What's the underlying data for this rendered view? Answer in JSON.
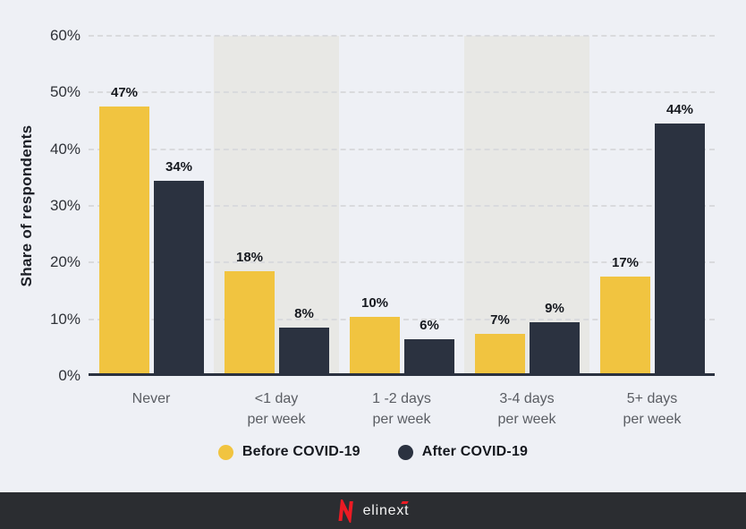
{
  "chart_data": {
    "type": "bar",
    "title": "",
    "xlabel": "",
    "ylabel": "Share of respondents",
    "categories": [
      "Never",
      "<1 day\nper week",
      "1 -2 days\nper week",
      "3-4 days\nper week",
      "5+ days\nper week"
    ],
    "series": [
      {
        "name": "Before COVID-19",
        "color": "#F1C440",
        "values": [
          47,
          18,
          10,
          7,
          17
        ]
      },
      {
        "name": "After COVID-19",
        "color": "#2B3240",
        "values": [
          34,
          8,
          6,
          9,
          44
        ]
      }
    ],
    "value_label_suffix": "%",
    "y_ticks": [
      "0%",
      "10%",
      "20%",
      "30%",
      "40%",
      "50%",
      "60%"
    ],
    "ylim": [
      0,
      60
    ],
    "grid": "horizontal-dashed",
    "banded_category_indexes": [
      1,
      3
    ],
    "legend_position": "bottom"
  },
  "colors": {
    "background": "#EEF0F5",
    "band": "#E8E8E5",
    "before_bar": "#F1C440",
    "after_bar": "#2B3240",
    "axis_line": "#2B3240",
    "gridline": "#D9DADD",
    "footer_bar": "#2B2D31",
    "logo_red": "#EC1B24"
  },
  "footer": {
    "logo_text": "elinext"
  }
}
